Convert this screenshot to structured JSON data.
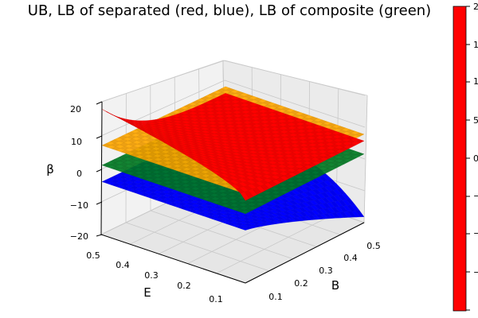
{
  "chart_data": {
    "type": "surface3d",
    "title": "UB, LB of separated (red, blue), LB of composite (green)",
    "xlabel": "B",
    "ylabel": "E",
    "zlabel": "β",
    "x_ticks": [
      "0.1",
      "0.2",
      "0.3",
      "0.4",
      "0.5"
    ],
    "y_ticks": [
      "0.1",
      "0.2",
      "0.3",
      "0.4",
      "0.5"
    ],
    "z_ticks": [
      "−20",
      "−10",
      "0",
      "10",
      "20"
    ],
    "xlim": [
      0.05,
      0.5
    ],
    "ylim": [
      0.05,
      0.5
    ],
    "zlim": [
      -20,
      22
    ],
    "colorbar_ticks": [
      "−",
      "−",
      "−",
      "0",
      "5",
      "1",
      "1",
      "2"
    ],
    "surfaces": [
      {
        "color": "#0000ff",
        "shape": "reciprocal_decay",
        "corners": {
          "lowB_highE": -4,
          "highB_highE": -4,
          "highB_lowE": -18,
          "lowB_lowE": -4
        }
      },
      {
        "color": "#007a22",
        "shape": "plane",
        "corners": {
          "lowB_highE": 1,
          "highB_highE": 1,
          "highB_lowE": 1,
          "lowB_lowE": 1
        }
      },
      {
        "color": "#ffa500",
        "shape": "plane",
        "corners": {
          "lowB_highE": 7,
          "highB_highE": 7,
          "highB_lowE": 7,
          "lowB_lowE": 7
        }
      },
      {
        "color": "#ff0000",
        "shape": "reciprocal_rise",
        "corners": {
          "lowB_highE": 18,
          "highB_highE": 5,
          "highB_lowE": 5,
          "lowB_lowE": 5
        }
      }
    ],
    "grid": true,
    "legend": "none"
  }
}
